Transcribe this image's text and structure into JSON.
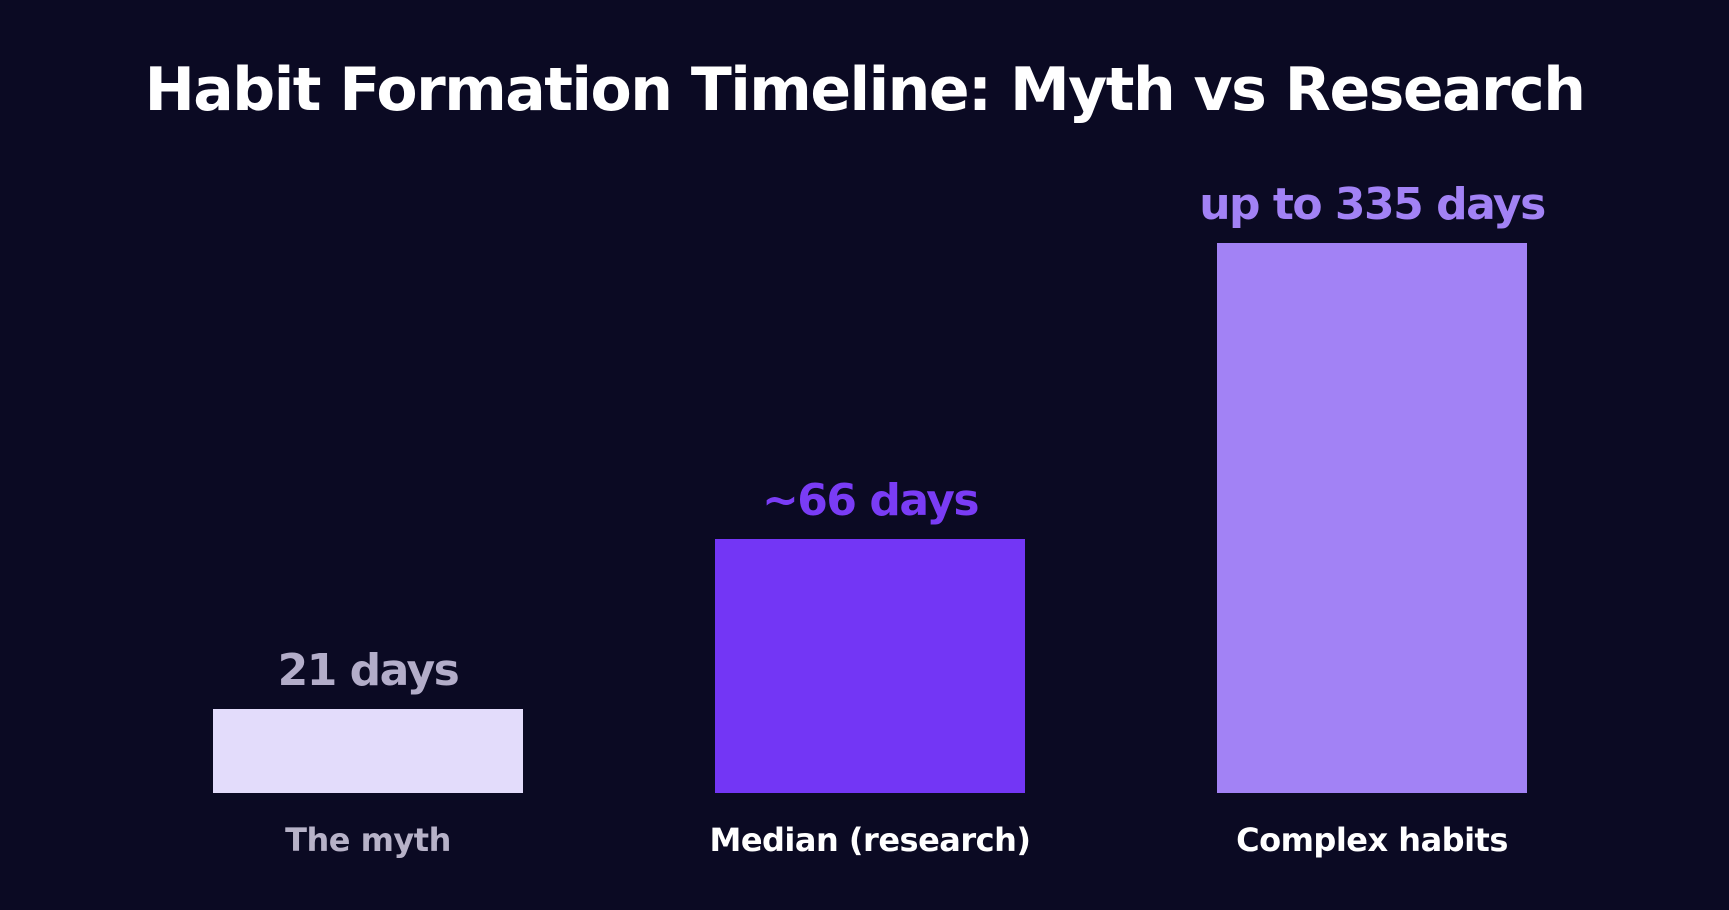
{
  "chart_data": {
    "type": "bar",
    "title": "Habit Formation Timeline: Myth vs Research",
    "xlabel": "",
    "ylabel": "",
    "grid": false,
    "legend": "none",
    "ylim": [
      0,
      335
    ],
    "categories": [
      "The myth",
      "Median (research)",
      "Complex habits"
    ],
    "values": [
      21,
      66,
      335
    ],
    "data_labels": [
      "21 days",
      "~66 days",
      "up to 335 days"
    ],
    "bar_colors": [
      "#e3dcfb",
      "#7336f5",
      "#a282f5"
    ],
    "value_label_colors": [
      "#b3adc9",
      "#7a3cf5",
      "#a282f5"
    ],
    "category_label_colors": [
      "#b7b2c8",
      "#ffffff",
      "#ffffff"
    ]
  },
  "colors": {
    "background": "#0b0a23",
    "title": "#ffffff"
  }
}
